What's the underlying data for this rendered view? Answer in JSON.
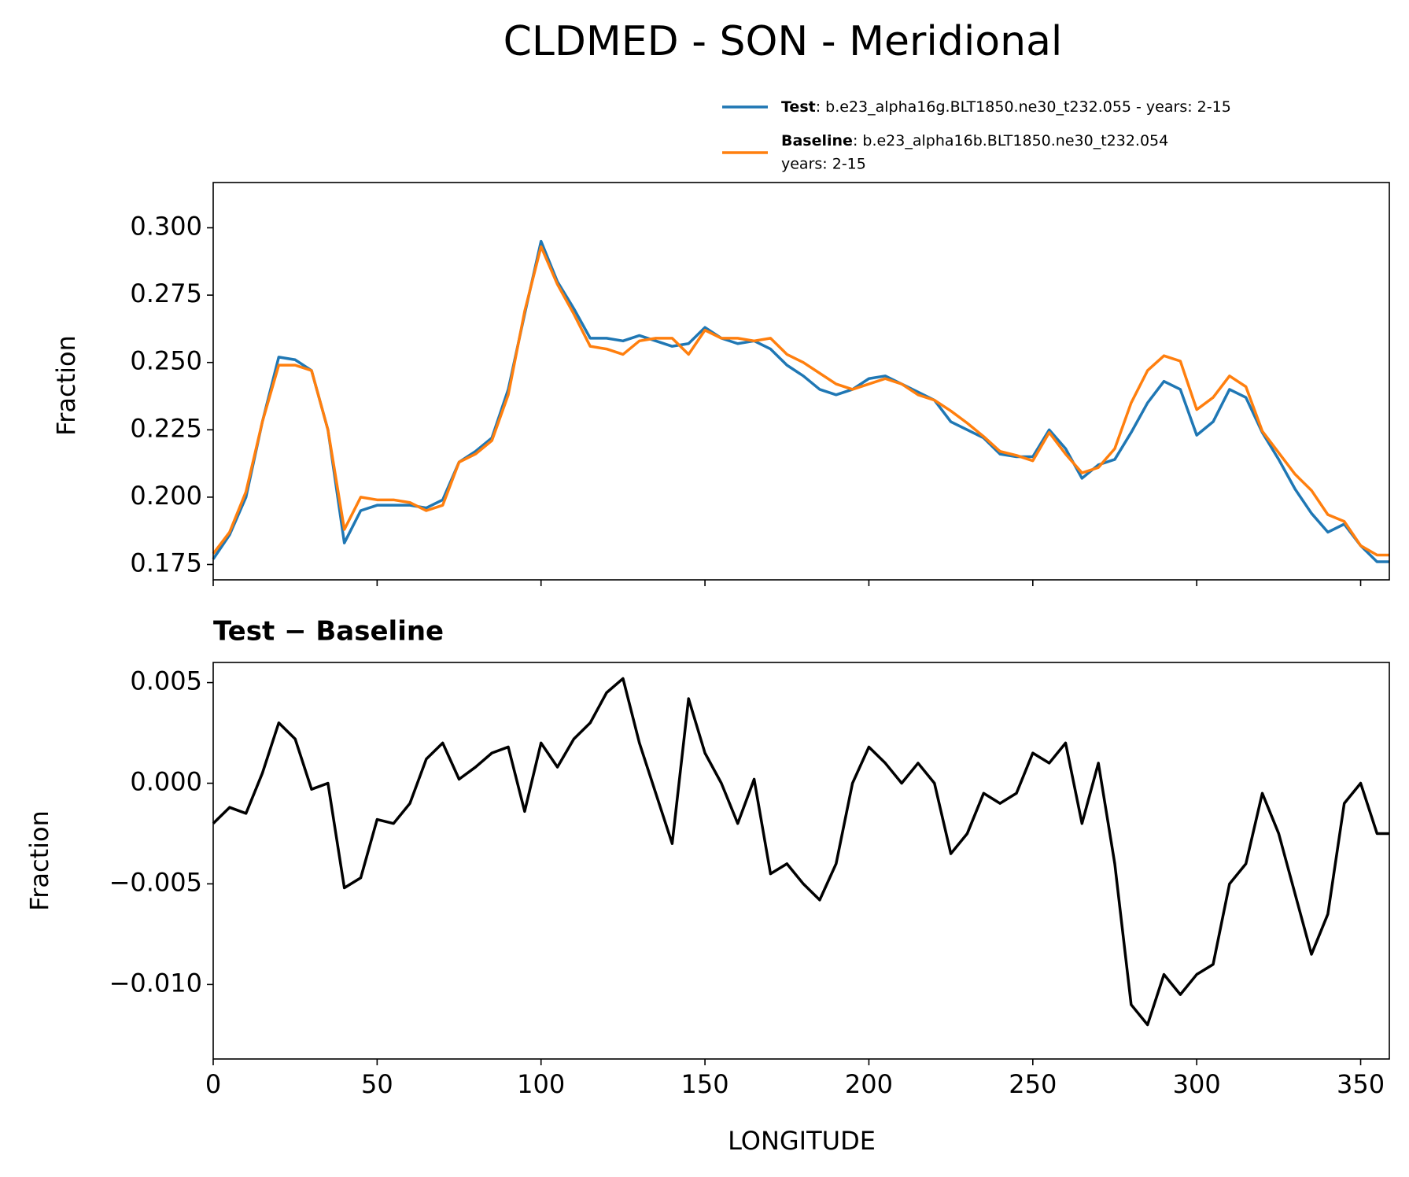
{
  "chart_data": [
    {
      "type": "line",
      "title": "CLDMED - SON - Meridional",
      "ylabel": "Fraction",
      "x": [
        0,
        5,
        10,
        15,
        20,
        25,
        30,
        35,
        40,
        45,
        50,
        55,
        60,
        65,
        70,
        75,
        80,
        85,
        90,
        95,
        100,
        105,
        110,
        115,
        120,
        125,
        130,
        135,
        140,
        145,
        150,
        155,
        160,
        165,
        170,
        175,
        180,
        185,
        190,
        195,
        200,
        205,
        210,
        215,
        220,
        225,
        230,
        235,
        240,
        245,
        250,
        255,
        260,
        265,
        270,
        275,
        280,
        285,
        290,
        295,
        300,
        305,
        310,
        315,
        320,
        325,
        330,
        335,
        340,
        345,
        350,
        355,
        358.75
      ],
      "xlim": [
        0,
        358.75
      ],
      "ylim": [
        0.1693,
        0.3168
      ],
      "yticks": [
        {
          "value": 0.175,
          "label": "0.175"
        },
        {
          "value": 0.2,
          "label": "0.200"
        },
        {
          "value": 0.225,
          "label": "0.225"
        },
        {
          "value": 0.25,
          "label": "0.250"
        },
        {
          "value": 0.275,
          "label": "0.275"
        },
        {
          "value": 0.3,
          "label": "0.300"
        }
      ],
      "series": [
        {
          "name": "Test",
          "legend_detail": [
            ": b.e23_alpha16g.BLT1850.ne30_t232.055 - years: 2-15"
          ],
          "color": "#1f77b4",
          "values": [
            0.177,
            0.186,
            0.2,
            0.228,
            0.252,
            0.251,
            0.247,
            0.225,
            0.183,
            0.195,
            0.197,
            0.197,
            0.197,
            0.196,
            0.199,
            0.213,
            0.217,
            0.222,
            0.24,
            0.268,
            0.295,
            0.28,
            0.27,
            0.259,
            0.259,
            0.258,
            0.26,
            0.258,
            0.256,
            0.257,
            0.263,
            0.259,
            0.257,
            0.258,
            0.255,
            0.249,
            0.245,
            0.24,
            0.238,
            0.24,
            0.244,
            0.245,
            0.242,
            0.239,
            0.236,
            0.228,
            0.225,
            0.222,
            0.216,
            0.215,
            0.215,
            0.225,
            0.218,
            0.207,
            0.212,
            0.214,
            0.224,
            0.235,
            0.243,
            0.24,
            0.223,
            0.228,
            0.24,
            0.237,
            0.224,
            0.214,
            0.203,
            0.194,
            0.187,
            0.19,
            0.182,
            0.176,
            0.176
          ]
        },
        {
          "name": "Baseline",
          "legend_detail": [
            ": b.e23_alpha16b.BLT1850.ne30_t232.054",
            "years: 2-15"
          ],
          "color": "#ff7f0e",
          "values": [
            0.179,
            0.187,
            0.202,
            0.228,
            0.249,
            0.249,
            0.247,
            0.225,
            0.188,
            0.2,
            0.199,
            0.199,
            0.198,
            0.195,
            0.197,
            0.213,
            0.216,
            0.221,
            0.238,
            0.269,
            0.293,
            0.279,
            0.268,
            0.256,
            0.255,
            0.253,
            0.258,
            0.259,
            0.259,
            0.253,
            0.262,
            0.259,
            0.259,
            0.258,
            0.259,
            0.253,
            0.25,
            0.246,
            0.242,
            0.24,
            0.242,
            0.244,
            0.242,
            0.238,
            0.236,
            0.232,
            0.2275,
            0.2225,
            0.217,
            0.2155,
            0.2135,
            0.224,
            0.216,
            0.209,
            0.211,
            0.218,
            0.235,
            0.247,
            0.2525,
            0.2505,
            0.2325,
            0.237,
            0.245,
            0.241,
            0.2245,
            0.2165,
            0.2085,
            0.2025,
            0.1935,
            0.191,
            0.182,
            0.1785,
            0.1785
          ]
        }
      ]
    },
    {
      "type": "line",
      "title": "Test − Baseline",
      "ylabel": "Fraction",
      "xlabel": "LONGITUDE",
      "x": [
        0,
        5,
        10,
        15,
        20,
        25,
        30,
        35,
        40,
        45,
        50,
        55,
        60,
        65,
        70,
        75,
        80,
        85,
        90,
        95,
        100,
        105,
        110,
        115,
        120,
        125,
        130,
        135,
        140,
        145,
        150,
        155,
        160,
        165,
        170,
        175,
        180,
        185,
        190,
        195,
        200,
        205,
        210,
        215,
        220,
        225,
        230,
        235,
        240,
        245,
        250,
        255,
        260,
        265,
        270,
        275,
        280,
        285,
        290,
        295,
        300,
        305,
        310,
        315,
        320,
        325,
        330,
        335,
        340,
        345,
        350,
        355,
        358.75
      ],
      "xlim": [
        0,
        358.75
      ],
      "xticks": [
        0,
        50,
        100,
        150,
        200,
        250,
        300,
        350
      ],
      "ylim": [
        -0.0137,
        0.006
      ],
      "yticks": [
        {
          "value": -0.01,
          "label": "−0.010"
        },
        {
          "value": -0.005,
          "label": "−0.005"
        },
        {
          "value": 0,
          "label": "0.000"
        },
        0.005
      ],
      "series": [
        {
          "color": "#000000",
          "values": [
            -0.002,
            -0.0012,
            -0.0015,
            0.0005,
            0.003,
            0.0022,
            -0.0003,
            0.0,
            -0.0052,
            -0.0047,
            -0.0018,
            -0.002,
            -0.001,
            0.0012,
            0.002,
            0.0002,
            0.0008,
            0.0015,
            0.0018,
            -0.0014,
            0.002,
            0.0008,
            0.0022,
            0.003,
            0.0045,
            0.0052,
            0.002,
            -0.0005,
            -0.003,
            0.0042,
            0.0015,
            0.0,
            -0.002,
            0.0002,
            -0.0045,
            -0.004,
            -0.005,
            -0.0058,
            -0.004,
            0.0,
            0.0018,
            0.001,
            0.0,
            0.001,
            0.0,
            -0.0035,
            -0.0025,
            -0.0005,
            -0.001,
            -0.0005,
            0.0015,
            0.001,
            0.002,
            -0.002,
            0.001,
            -0.004,
            -0.011,
            -0.012,
            -0.0095,
            -0.0105,
            -0.0095,
            -0.009,
            -0.005,
            -0.004,
            -0.0005,
            -0.0025,
            -0.0055,
            -0.0085,
            -0.0065,
            -0.001,
            0.0,
            -0.0025,
            -0.0025
          ]
        }
      ]
    }
  ]
}
